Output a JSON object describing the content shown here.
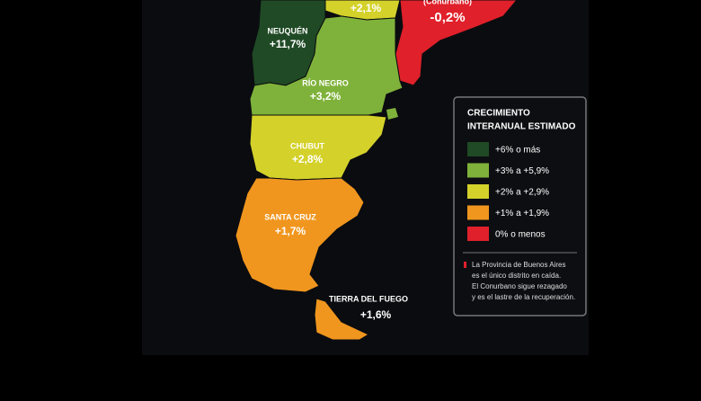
{
  "regions": [
    {
      "name": null,
      "value": "+2,1%",
      "color": "#d4d12a"
    },
    {
      "name": "(Conurbano)",
      "value": "-0,2%",
      "color": "#e0202a"
    },
    {
      "name": "NEUQUÉN",
      "value": "+11,7%",
      "color": "#1f4a25"
    },
    {
      "name": "RÍO NEGRO",
      "value": "+3,2%",
      "color": "#7fb23a"
    },
    {
      "name": "CHUBUT",
      "value": "+2,8%",
      "color": "#d4d12a"
    },
    {
      "name": "SANTA CRUZ",
      "value": "+1,7%",
      "color": "#f0961e"
    },
    {
      "name": "TIERRA DEL FUEGO",
      "value": "+1,6%",
      "color": "#f0961e"
    }
  ],
  "legend": {
    "title": [
      "CRECIMIENTO",
      "INTERANUAL ESTIMADO"
    ],
    "items": [
      {
        "label": "+6% o más",
        "color": "#1f4a25"
      },
      {
        "label": "+3% a +5,9%",
        "color": "#7fb23a"
      },
      {
        "label": "+2% a +2,9%",
        "color": "#d4d12a"
      },
      {
        "label": "+1% a +1,9%",
        "color": "#f0961e"
      },
      {
        "label": "0% o menos",
        "color": "#e0202a"
      }
    ],
    "note": [
      "La Provincia de Buenos Aires",
      "es el único distrito en caída.",
      "El Conurbano sigue rezagado",
      "y es el lastre de la recuperación."
    ]
  }
}
